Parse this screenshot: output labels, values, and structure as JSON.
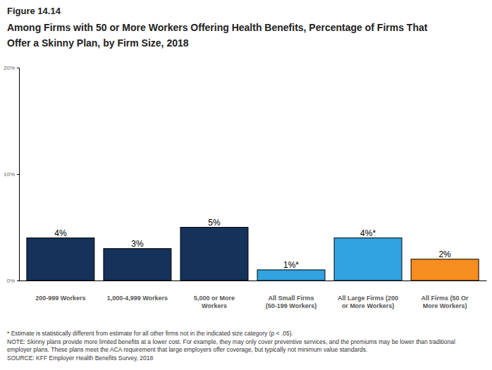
{
  "chart_data": {
    "type": "bar",
    "figure_label": "Figure 14.14",
    "title": "Among Firms with 50 or More Workers Offering Health Benefits, Percentage of Firms That Offer a Skinny Plan, by Firm Size, 2018",
    "categories": [
      "200-999 Workers",
      "1,000-4,999 Workers",
      "5,000 or More Workers",
      "All Small Firms (50-199 Workers)",
      "All Large Firms (200 or More Workers)",
      "All Firms (50 Or More Workers)"
    ],
    "values": [
      4,
      3,
      5,
      1,
      4,
      2
    ],
    "value_labels": [
      "4%",
      "3%",
      "5%",
      "1%*",
      "4%*",
      "2%"
    ],
    "colors": [
      "#14325a",
      "#14325a",
      "#14325a",
      "#30a3e0",
      "#30a3e0",
      "#f68d1f"
    ],
    "data_labels": true,
    "grid": false,
    "ylim": [
      0,
      20
    ],
    "yticks": [
      {
        "value": 0,
        "label": "0%"
      },
      {
        "value": 10,
        "label": "10%"
      },
      {
        "value": 20,
        "label": "20%"
      }
    ],
    "notes": [
      "* Estimate is statistically different from estimate for all other firms not in the indicated size category (p < .05).",
      "NOTE: Skinny plans provide more limited benefits at a lower cost. For example, they may only cover preventive services, and the premiums may be lower than traditional employer plans. These plans meet the ACA requirement that large employers offer coverage, but typically not minimum value standards.",
      "SOURCE: KFF Employer Health Benefits Survey, 2018"
    ]
  }
}
